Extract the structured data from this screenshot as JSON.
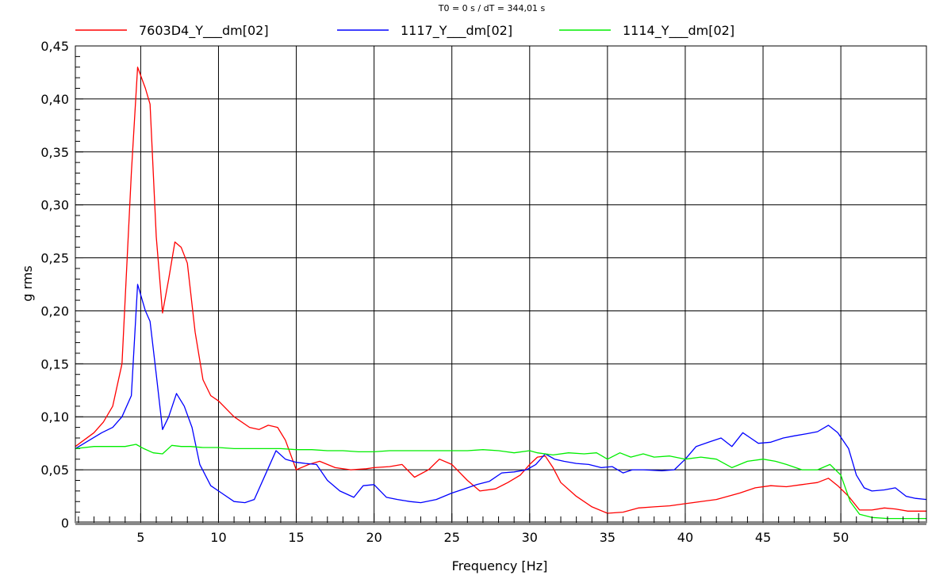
{
  "chart_data": {
    "type": "line",
    "header": "T0 = 0 s / dT = 344,01 s",
    "xlabel": "Frequency  [Hz]",
    "ylabel": "g rms",
    "xlim": [
      0.8,
      55.5
    ],
    "ylim": [
      0,
      0.45
    ],
    "grid": true,
    "legend_position": "top",
    "x_ticks": [
      5,
      10,
      15,
      20,
      25,
      30,
      35,
      40,
      45,
      50
    ],
    "x_tick_labels": [
      "5",
      "10",
      "15",
      "20",
      "25",
      "30",
      "35",
      "40",
      "45",
      "50"
    ],
    "y_ticks": [
      0,
      0.05,
      0.1,
      0.15,
      0.2,
      0.25,
      0.3,
      0.35,
      0.4,
      0.45
    ],
    "y_tick_labels": [
      "0",
      "0,05",
      "0,10",
      "0,15",
      "0,20",
      "0,25",
      "0,30",
      "0,35",
      "0,40",
      "0,45"
    ],
    "series": [
      {
        "name": "7603D4_Y___dm[02]",
        "color": "#ff0000",
        "x": [
          0.8,
          2.0,
          2.6,
          3.2,
          3.8,
          4.4,
          4.8,
          5.3,
          5.6,
          6.0,
          6.4,
          6.8,
          7.2,
          7.6,
          8.0,
          8.5,
          9.0,
          9.5,
          10.0,
          11.0,
          12.0,
          12.6,
          13.2,
          13.8,
          14.3,
          15.0,
          15.8,
          16.5,
          17.5,
          18.5,
          19.5,
          20.0,
          21.0,
          21.8,
          22.6,
          23.5,
          24.2,
          25.0,
          26.0,
          26.8,
          27.8,
          28.6,
          29.4,
          30.0,
          30.5,
          31.0,
          31.5,
          32.0,
          33.0,
          34.0,
          35.0,
          36.0,
          37.0,
          38.0,
          39.0,
          40.0,
          42.0,
          43.5,
          44.5,
          45.5,
          46.5,
          47.5,
          48.5,
          49.2,
          49.8,
          50.5,
          51.2,
          52.0,
          52.8,
          53.5,
          54.3,
          55.5
        ],
        "values": [
          0.072,
          0.085,
          0.095,
          0.11,
          0.15,
          0.33,
          0.43,
          0.41,
          0.395,
          0.27,
          0.198,
          0.23,
          0.265,
          0.26,
          0.245,
          0.18,
          0.135,
          0.12,
          0.115,
          0.1,
          0.09,
          0.088,
          0.092,
          0.09,
          0.078,
          0.05,
          0.055,
          0.058,
          0.052,
          0.05,
          0.051,
          0.052,
          0.053,
          0.055,
          0.043,
          0.05,
          0.06,
          0.055,
          0.04,
          0.03,
          0.032,
          0.038,
          0.045,
          0.055,
          0.062,
          0.063,
          0.052,
          0.038,
          0.025,
          0.015,
          0.009,
          0.01,
          0.014,
          0.015,
          0.016,
          0.018,
          0.022,
          0.028,
          0.033,
          0.035,
          0.034,
          0.036,
          0.038,
          0.042,
          0.035,
          0.025,
          0.012,
          0.012,
          0.014,
          0.013,
          0.011,
          0.011
        ]
      },
      {
        "name": "1117_Y___dm[02]",
        "color": "#0000ff",
        "x": [
          0.8,
          2.5,
          3.2,
          3.8,
          4.4,
          4.8,
          5.3,
          5.6,
          6.0,
          6.4,
          6.8,
          7.3,
          7.8,
          8.3,
          8.8,
          9.5,
          10.2,
          11.0,
          11.7,
          12.3,
          13.0,
          13.7,
          14.3,
          15.0,
          15.6,
          16.3,
          17.0,
          17.8,
          18.7,
          19.3,
          20.0,
          20.8,
          21.5,
          22.3,
          23.0,
          24.0,
          25.0,
          25.8,
          26.6,
          27.4,
          28.2,
          29.0,
          29.8,
          30.4,
          31.0,
          31.6,
          32.2,
          33.0,
          33.8,
          34.6,
          35.3,
          36.0,
          36.6,
          37.3,
          38.5,
          39.3,
          40.0,
          40.7,
          41.5,
          42.3,
          43.0,
          43.7,
          44.2,
          44.7,
          45.5,
          46.3,
          47.0,
          47.8,
          48.5,
          49.2,
          49.8,
          50.5,
          51.0,
          51.5,
          52.0,
          52.8,
          53.5,
          54.2,
          54.8,
          55.5
        ],
        "values": [
          0.07,
          0.085,
          0.09,
          0.1,
          0.12,
          0.225,
          0.2,
          0.19,
          0.14,
          0.088,
          0.1,
          0.122,
          0.11,
          0.09,
          0.055,
          0.035,
          0.028,
          0.02,
          0.019,
          0.022,
          0.045,
          0.068,
          0.06,
          0.057,
          0.056,
          0.055,
          0.04,
          0.03,
          0.024,
          0.035,
          0.036,
          0.024,
          0.022,
          0.02,
          0.019,
          0.022,
          0.028,
          0.032,
          0.036,
          0.039,
          0.047,
          0.048,
          0.05,
          0.055,
          0.065,
          0.06,
          0.058,
          0.056,
          0.055,
          0.052,
          0.053,
          0.047,
          0.05,
          0.05,
          0.049,
          0.05,
          0.06,
          0.072,
          0.076,
          0.08,
          0.072,
          0.085,
          0.08,
          0.075,
          0.076,
          0.08,
          0.082,
          0.084,
          0.086,
          0.092,
          0.085,
          0.07,
          0.045,
          0.033,
          0.03,
          0.031,
          0.033,
          0.025,
          0.023,
          0.022
        ]
      },
      {
        "name": "1114_Y___dm[02]",
        "color": "#00ee00",
        "x": [
          0.8,
          2.0,
          3.0,
          4.0,
          4.7,
          5.2,
          5.8,
          6.4,
          7.0,
          7.6,
          8.2,
          9.0,
          10.0,
          11.0,
          12.0,
          13.0,
          14.0,
          15.0,
          16.0,
          17.0,
          18.0,
          19.0,
          20.0,
          21.0,
          22.0,
          23.0,
          24.0,
          25.0,
          26.0,
          27.0,
          28.0,
          29.0,
          30.0,
          30.5,
          31.5,
          32.5,
          33.5,
          34.3,
          35.0,
          35.8,
          36.5,
          37.3,
          38.0,
          39.0,
          40.0,
          41.0,
          42.0,
          43.0,
          44.0,
          45.0,
          45.8,
          46.5,
          47.5,
          48.5,
          49.3,
          50.0,
          50.6,
          51.2,
          52.0,
          53.0,
          54.0,
          55.5
        ],
        "values": [
          0.07,
          0.072,
          0.072,
          0.072,
          0.074,
          0.07,
          0.066,
          0.065,
          0.073,
          0.072,
          0.072,
          0.071,
          0.071,
          0.07,
          0.07,
          0.07,
          0.07,
          0.069,
          0.069,
          0.068,
          0.068,
          0.067,
          0.067,
          0.068,
          0.068,
          0.068,
          0.068,
          0.068,
          0.068,
          0.069,
          0.068,
          0.066,
          0.068,
          0.066,
          0.064,
          0.066,
          0.065,
          0.066,
          0.06,
          0.066,
          0.062,
          0.065,
          0.062,
          0.063,
          0.06,
          0.062,
          0.06,
          0.052,
          0.058,
          0.06,
          0.058,
          0.055,
          0.05,
          0.05,
          0.055,
          0.045,
          0.02,
          0.008,
          0.005,
          0.004,
          0.004,
          0.004
        ]
      }
    ]
  }
}
